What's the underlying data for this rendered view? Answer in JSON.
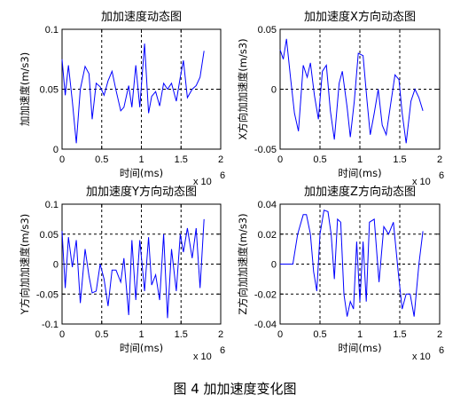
{
  "figure_caption": "图 4   加加速度变化图",
  "chart_data": [
    {
      "type": "line",
      "title": "加加速度动态图",
      "xlabel": "时间(ms)",
      "ylabel": "加加速度(m/s3)",
      "x_exponent": "x 10",
      "x_exponent_power": "6",
      "xlim": [
        0,
        2
      ],
      "ylim": [
        0,
        0.1
      ],
      "xticks": [
        "0",
        "0.5",
        "1",
        "1.5",
        "2"
      ],
      "yticks": [
        "0",
        "0.05",
        "0.1"
      ],
      "grid": true,
      "series": [
        {
          "color": "#0000ff",
          "x": [
            0.0,
            0.04,
            0.08,
            0.13,
            0.18,
            0.23,
            0.29,
            0.34,
            0.38,
            0.43,
            0.48,
            0.53,
            0.58,
            0.63,
            0.68,
            0.74,
            0.78,
            0.84,
            0.88,
            0.93,
            0.98,
            1.04,
            1.09,
            1.13,
            1.18,
            1.23,
            1.28,
            1.33,
            1.38,
            1.44,
            1.49,
            1.53,
            1.58,
            1.64,
            1.69,
            1.74,
            1.79
          ],
          "y": [
            0.075,
            0.045,
            0.07,
            0.04,
            0.005,
            0.05,
            0.069,
            0.063,
            0.025,
            0.055,
            0.052,
            0.045,
            0.057,
            0.065,
            0.049,
            0.032,
            0.035,
            0.053,
            0.035,
            0.07,
            0.035,
            0.088,
            0.03,
            0.044,
            0.048,
            0.036,
            0.055,
            0.05,
            0.055,
            0.04,
            0.06,
            0.074,
            0.043,
            0.05,
            0.053,
            0.06,
            0.082
          ]
        }
      ]
    },
    {
      "type": "line",
      "title": "加加速度X方向动态图",
      "xlabel": "时间(ms)",
      "ylabel": "X方向加加速度(m/s3)",
      "x_exponent": "x 10",
      "x_exponent_power": "6",
      "xlim": [
        0,
        2
      ],
      "ylim": [
        -0.05,
        0.05
      ],
      "xticks": [
        "0",
        "0.5",
        "1",
        "1.5",
        "2"
      ],
      "yticks": [
        "-0.05",
        "0",
        "0.05"
      ],
      "grid": true,
      "series": [
        {
          "color": "#0000ff",
          "x": [
            0.0,
            0.04,
            0.08,
            0.13,
            0.18,
            0.23,
            0.29,
            0.34,
            0.38,
            0.43,
            0.48,
            0.53,
            0.58,
            0.63,
            0.68,
            0.74,
            0.78,
            0.84,
            0.88,
            0.93,
            0.98,
            1.04,
            1.09,
            1.13,
            1.18,
            1.23,
            1.28,
            1.33,
            1.38,
            1.44,
            1.49,
            1.53,
            1.58,
            1.64,
            1.69,
            1.74,
            1.79
          ],
          "y": [
            0.033,
            0.025,
            0.042,
            0.01,
            -0.02,
            -0.035,
            0.02,
            0.01,
            0.022,
            -0.005,
            -0.025,
            0.015,
            0.02,
            -0.018,
            -0.042,
            0.005,
            0.015,
            -0.015,
            -0.04,
            -0.01,
            0.03,
            0.028,
            -0.01,
            -0.038,
            -0.02,
            0.0,
            -0.03,
            -0.038,
            -0.015,
            0.012,
            0.008,
            -0.02,
            -0.045,
            -0.01,
            0.0,
            -0.007,
            -0.018
          ]
        }
      ]
    },
    {
      "type": "line",
      "title": "加加速度Y方向动态图",
      "xlabel": "时间(ms)",
      "ylabel": "Y方向加加速度(m/s3)",
      "x_exponent": "x 10",
      "x_exponent_power": "6",
      "xlim": [
        0,
        2
      ],
      "ylim": [
        -0.1,
        0.1
      ],
      "xticks": [
        "0",
        "0.5",
        "1",
        "1.5",
        "2"
      ],
      "yticks": [
        "-0.1",
        "-0.05",
        "0",
        "0.05",
        "0.1"
      ],
      "grid": true,
      "series": [
        {
          "color": "#0000ff",
          "x": [
            0.0,
            0.04,
            0.08,
            0.13,
            0.18,
            0.23,
            0.29,
            0.34,
            0.38,
            0.43,
            0.48,
            0.53,
            0.58,
            0.63,
            0.68,
            0.74,
            0.78,
            0.84,
            0.88,
            0.93,
            0.98,
            1.04,
            1.09,
            1.13,
            1.18,
            1.23,
            1.28,
            1.33,
            1.38,
            1.44,
            1.49,
            1.53,
            1.58,
            1.64,
            1.69,
            1.74,
            1.79
          ],
          "y": [
            0.055,
            -0.04,
            0.045,
            -0.005,
            0.04,
            -0.065,
            0.025,
            -0.02,
            -0.048,
            -0.045,
            0.0,
            -0.025,
            -0.07,
            -0.01,
            -0.01,
            -0.03,
            0.01,
            -0.085,
            0.04,
            -0.06,
            0.04,
            -0.045,
            0.045,
            -0.035,
            -0.018,
            -0.06,
            0.05,
            -0.09,
            0.025,
            -0.045,
            0.05,
            0.02,
            0.06,
            0.01,
            0.06,
            -0.04,
            0.075
          ]
        }
      ]
    },
    {
      "type": "line",
      "title": "加加速度Z方向动态图",
      "xlabel": "时间(ms)",
      "ylabel": "Z方向加加速度(m/s3)",
      "x_exponent": "x 10",
      "x_exponent_power": "6",
      "xlim": [
        0,
        2
      ],
      "ylim": [
        -0.04,
        0.04
      ],
      "xticks": [
        "0",
        "0.5",
        "1",
        "1.5",
        "2"
      ],
      "yticks": [
        "-0.04",
        "-0.02",
        "0",
        "0.02",
        "0.04"
      ],
      "grid": true,
      "series": [
        {
          "color": "#0000ff",
          "x": [
            0.0,
            0.08,
            0.16,
            0.22,
            0.29,
            0.33,
            0.38,
            0.42,
            0.46,
            0.5,
            0.55,
            0.6,
            0.64,
            0.68,
            0.72,
            0.76,
            0.8,
            0.84,
            0.88,
            0.92,
            0.96,
            1.0,
            1.04,
            1.08,
            1.12,
            1.18,
            1.24,
            1.3,
            1.36,
            1.42,
            1.48,
            1.53,
            1.58,
            1.63,
            1.68,
            1.74,
            1.79
          ],
          "y": [
            0.0,
            0.0,
            0.0,
            0.02,
            0.033,
            0.033,
            0.02,
            -0.005,
            -0.018,
            0.02,
            0.036,
            0.035,
            0.02,
            -0.01,
            0.03,
            0.028,
            -0.02,
            -0.035,
            -0.025,
            -0.03,
            0.015,
            -0.025,
            0.015,
            -0.025,
            0.028,
            0.03,
            -0.012,
            0.025,
            0.02,
            0.028,
            -0.005,
            -0.03,
            -0.02,
            -0.02,
            -0.035,
            0.0,
            0.022
          ]
        }
      ]
    }
  ]
}
